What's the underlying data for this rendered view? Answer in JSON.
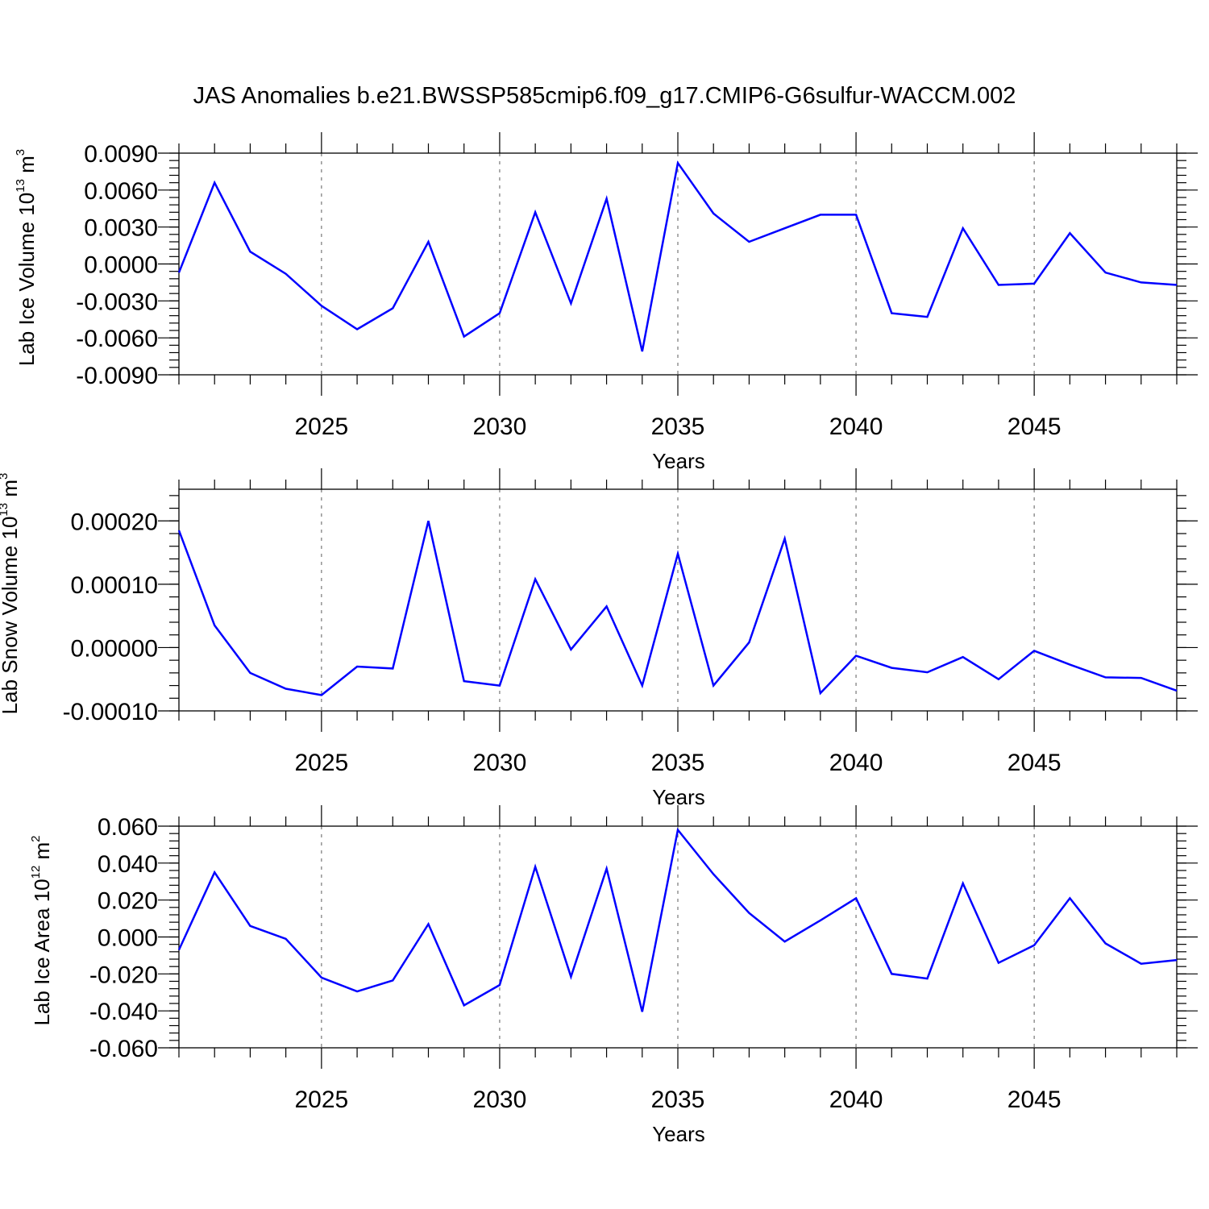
{
  "title": "JAS Anomalies b.e21.BWSSP585cmip6.f09_g17.CMIP6-G6sulfur-WACCM.002",
  "style": {
    "line_color": "#0000ff",
    "grid_color": "#777777"
  },
  "chart_data": [
    {
      "type": "line",
      "ylabel": "Lab Ice Volume 10",
      "ylabel_exp": "13",
      "ylabel_unit": " m",
      "ylabel_unit_exp": "3",
      "xlabel": "Years",
      "xlim": [
        2021,
        2049
      ],
      "ylim": [
        -0.009,
        0.009
      ],
      "yticks": [
        -0.009,
        -0.006,
        -0.003,
        0.0,
        0.003,
        0.006,
        0.009
      ],
      "ytick_labels": [
        "-0.0090",
        "-0.0060",
        "-0.0030",
        "0.0000",
        "0.0030",
        "0.0060",
        "0.0090"
      ],
      "xticks": [
        2025,
        2030,
        2035,
        2040,
        2045
      ],
      "xtick_labels": [
        "2025",
        "2030",
        "2035",
        "2040",
        "2045"
      ],
      "grid_x": true,
      "x": [
        2021,
        2022,
        2023,
        2024,
        2025,
        2026,
        2027,
        2028,
        2029,
        2030,
        2031,
        2032,
        2033,
        2034,
        2035,
        2036,
        2037,
        2038,
        2039,
        2040,
        2041,
        2042,
        2043,
        2044,
        2045,
        2046,
        2047,
        2048,
        2049
      ],
      "series": [
        {
          "values": [
            -0.0007,
            0.0066,
            0.001,
            -0.0008,
            -0.0034,
            -0.0053,
            -0.0036,
            0.0018,
            -0.0059,
            -0.004,
            0.0042,
            -0.0032,
            0.0053,
            -0.0071,
            0.0082,
            0.0041,
            0.0018,
            0.0029,
            0.004,
            0.004,
            -0.004,
            -0.0043,
            0.0029,
            -0.0017,
            -0.0016,
            0.0025,
            -0.0007,
            -0.0015,
            -0.0017
          ]
        }
      ]
    },
    {
      "type": "line",
      "ylabel": "Lab Snow Volume 10",
      "ylabel_exp": "13",
      "ylabel_unit": " m",
      "ylabel_unit_exp": "3",
      "xlabel": "Years",
      "xlim": [
        2021,
        2049
      ],
      "ylim": [
        -0.0001,
        0.00025
      ],
      "yticks": [
        -0.0001,
        0.0,
        0.0001,
        0.0002
      ],
      "ytick_labels": [
        "-0.00010",
        "0.00000",
        "0.00010",
        "0.00020"
      ],
      "xticks": [
        2025,
        2030,
        2035,
        2040,
        2045
      ],
      "xtick_labels": [
        "2025",
        "2030",
        "2035",
        "2040",
        "2045"
      ],
      "grid_x": true,
      "x": [
        2021,
        2022,
        2023,
        2024,
        2025,
        2026,
        2027,
        2028,
        2029,
        2030,
        2031,
        2032,
        2033,
        2034,
        2035,
        2036,
        2037,
        2038,
        2039,
        2040,
        2041,
        2042,
        2043,
        2044,
        2045,
        2046,
        2047,
        2048,
        2049
      ],
      "series": [
        {
          "values": [
            0.000185,
            3.5e-05,
            -4e-05,
            -6.5e-05,
            -7.5e-05,
            -3e-05,
            -3.3e-05,
            0.0002,
            -5.3e-05,
            -6e-05,
            0.000108,
            -3e-06,
            6.5e-05,
            -6e-05,
            0.000148,
            -6e-05,
            8e-06,
            0.000172,
            -7.2e-05,
            -1.3e-05,
            -3.2e-05,
            -3.9e-05,
            -1.5e-05,
            -5e-05,
            -5e-06,
            -2.7e-05,
            -4.7e-05,
            -4.8e-05,
            -6.8e-05
          ]
        }
      ]
    },
    {
      "type": "line",
      "ylabel": "Lab Ice Area 10",
      "ylabel_exp": "12",
      "ylabel_unit": " m",
      "ylabel_unit_exp": "2",
      "xlabel": "Years",
      "xlim": [
        2021,
        2049
      ],
      "ylim": [
        -0.06,
        0.06
      ],
      "yticks": [
        -0.06,
        -0.04,
        -0.02,
        0.0,
        0.02,
        0.04,
        0.06
      ],
      "ytick_labels": [
        "-0.060",
        "-0.040",
        "-0.020",
        "0.000",
        "0.020",
        "0.040",
        "0.060"
      ],
      "xticks": [
        2025,
        2030,
        2035,
        2040,
        2045
      ],
      "xtick_labels": [
        "2025",
        "2030",
        "2035",
        "2040",
        "2045"
      ],
      "grid_x": true,
      "x": [
        2021,
        2022,
        2023,
        2024,
        2025,
        2026,
        2027,
        2028,
        2029,
        2030,
        2031,
        2032,
        2033,
        2034,
        2035,
        2036,
        2037,
        2038,
        2039,
        2040,
        2041,
        2042,
        2043,
        2044,
        2045,
        2046,
        2047,
        2048,
        2049
      ],
      "series": [
        {
          "values": [
            -0.007,
            0.035,
            0.006,
            -0.001,
            -0.022,
            -0.0295,
            -0.0235,
            0.007,
            -0.037,
            -0.026,
            0.038,
            -0.0215,
            0.037,
            -0.0405,
            0.058,
            0.034,
            0.013,
            -0.0025,
            0.009,
            0.021,
            -0.02,
            -0.0225,
            0.029,
            -0.014,
            -0.0045,
            0.021,
            -0.0035,
            -0.0145,
            -0.0125
          ]
        }
      ]
    }
  ]
}
